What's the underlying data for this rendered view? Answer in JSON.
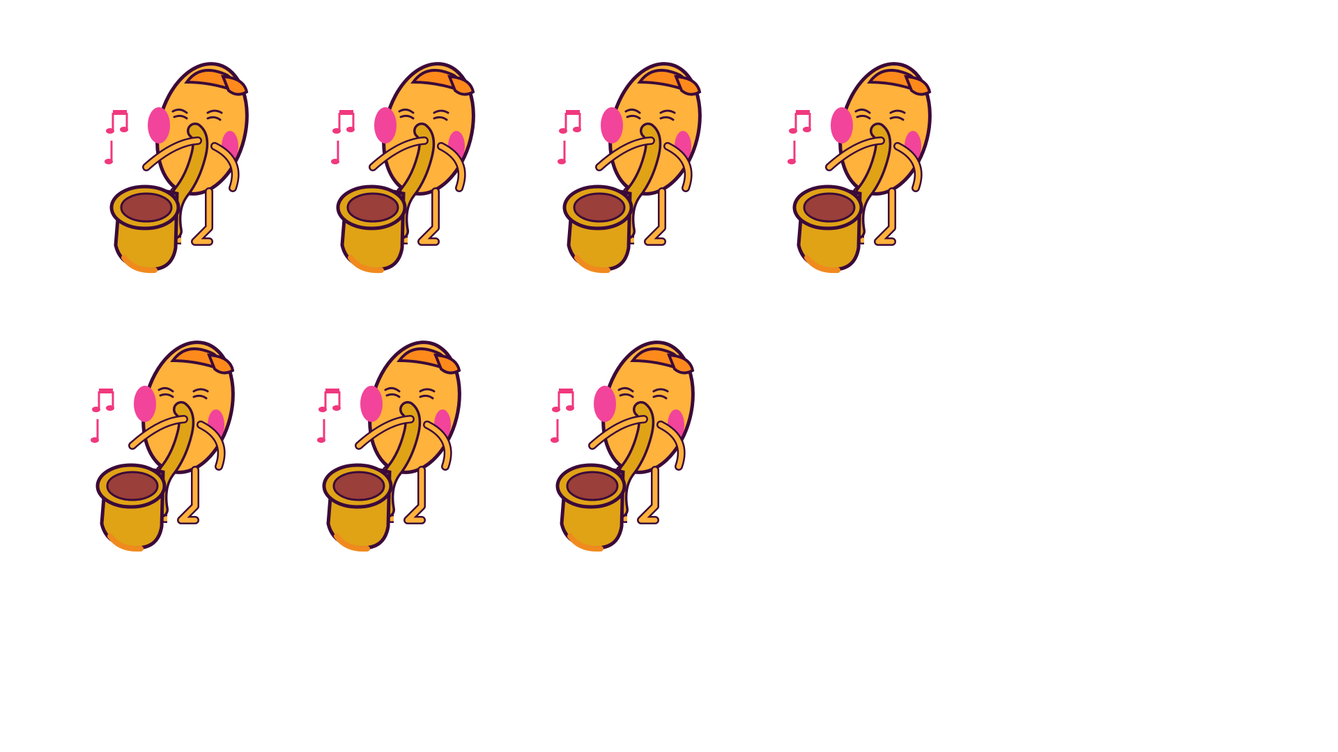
{
  "sprite_sheet": {
    "background_color": "#ffffff",
    "character": "egg-with-cap-playing-saxophone",
    "frame_count": 7,
    "colors": {
      "outline": "#3b0a3a",
      "body": "#ffb23c",
      "cheek": "#f2449a",
      "cap": "#ff8a1c",
      "sax": "#e0a316",
      "sax_shade": "#f08a1e",
      "bell_inside": "#9a3f3a",
      "note": "#f0387e"
    },
    "frames": [
      {
        "label": "",
        "note_icon": "music-note-icon",
        "mouth": "closed"
      },
      {
        "label": "",
        "note_icon": "music-note-icon",
        "mouth": "closed"
      },
      {
        "label": "",
        "note_icon": "music-note-icon",
        "mouth": "closed"
      },
      {
        "label": "",
        "note_icon": "music-note-icon",
        "mouth": "open"
      },
      {
        "label": "",
        "note_icon": "music-note-icon",
        "mouth": "open"
      },
      {
        "label": "",
        "note_icon": "music-note-icon",
        "mouth": "open"
      },
      {
        "label": "",
        "note_icon": "music-note-icon",
        "mouth": "open"
      }
    ]
  }
}
